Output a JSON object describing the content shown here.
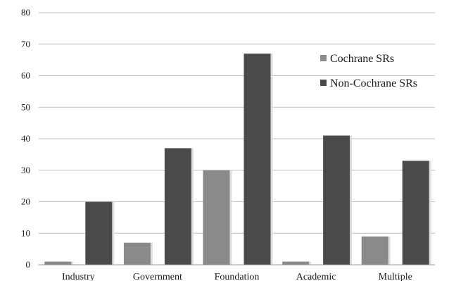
{
  "chart_data": {
    "type": "bar",
    "title": "",
    "xlabel": "",
    "ylabel": "",
    "categories": [
      "Industry",
      "Government",
      "Foundation",
      "Academic",
      "Multiple"
    ],
    "series": [
      {
        "name": "Cochrane SRs",
        "color": "#8a8a8a",
        "values": [
          1,
          7,
          30,
          1,
          9
        ]
      },
      {
        "name": "Non-Cochrane SRs",
        "color": "#4a4a4a",
        "values": [
          20,
          37,
          67,
          41,
          33
        ]
      }
    ],
    "ylim": [
      0,
      80
    ],
    "yticks": [
      0,
      10,
      20,
      30,
      40,
      50,
      60,
      70,
      80
    ],
    "grid": true,
    "legend_position": "right"
  }
}
